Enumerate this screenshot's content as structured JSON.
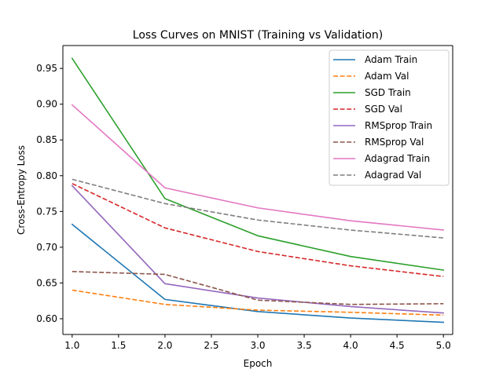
{
  "chart_data": {
    "type": "line",
    "title": "Loss Curves on MNIST (Training vs Validation)",
    "xlabel": "Epoch",
    "ylabel": "Cross-Entropy Loss",
    "xlim": [
      0.9,
      5.1
    ],
    "ylim": [
      0.578,
      0.982
    ],
    "xticks": [
      1.0,
      1.5,
      2.0,
      2.5,
      3.0,
      3.5,
      4.0,
      4.5,
      5.0
    ],
    "xtick_labels": [
      "1.0",
      "1.5",
      "2.0",
      "2.5",
      "3.0",
      "3.5",
      "4.0",
      "4.5",
      "5.0"
    ],
    "yticks": [
      0.6,
      0.65,
      0.7,
      0.75,
      0.8,
      0.85,
      0.9,
      0.95
    ],
    "ytick_labels": [
      "0.60",
      "0.65",
      "0.70",
      "0.75",
      "0.80",
      "0.85",
      "0.90",
      "0.95"
    ],
    "x": [
      1,
      2,
      3,
      4,
      5
    ],
    "grid": false,
    "legend_position": "top-right",
    "series": [
      {
        "name": "Adam Train",
        "color": "#1f77b4",
        "dash": "solid",
        "values": [
          0.732,
          0.627,
          0.61,
          0.601,
          0.595
        ]
      },
      {
        "name": "Adam Val",
        "color": "#ff7f0e",
        "dash": "dashed",
        "values": [
          0.64,
          0.62,
          0.612,
          0.609,
          0.605
        ]
      },
      {
        "name": "SGD Train",
        "color": "#2ca02c",
        "dash": "solid",
        "values": [
          0.964,
          0.768,
          0.716,
          0.687,
          0.668
        ]
      },
      {
        "name": "SGD Val",
        "color": "#d62728",
        "dash": "dashed",
        "values": [
          0.789,
          0.727,
          0.694,
          0.674,
          0.659
        ]
      },
      {
        "name": "RMSprop Train",
        "color": "#9467bd",
        "dash": "solid",
        "values": [
          0.786,
          0.649,
          0.629,
          0.617,
          0.608
        ]
      },
      {
        "name": "RMSprop Val",
        "color": "#8c564b",
        "dash": "dashed",
        "values": [
          0.666,
          0.662,
          0.626,
          0.62,
          0.621
        ]
      },
      {
        "name": "Adagrad Train",
        "color": "#e377c2",
        "dash": "solid",
        "values": [
          0.899,
          0.783,
          0.755,
          0.737,
          0.724
        ]
      },
      {
        "name": "Adagrad Val",
        "color": "#7f7f7f",
        "dash": "dashed",
        "values": [
          0.795,
          0.761,
          0.738,
          0.724,
          0.713
        ]
      }
    ]
  }
}
